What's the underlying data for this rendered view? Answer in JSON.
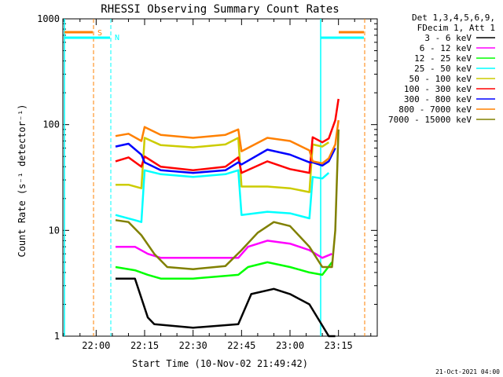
{
  "chart_data": {
    "type": "line",
    "title": "RHESSI Observing Summary Count Rates",
    "xlabel": "Start Time (10-Nov-02 21:49:42)",
    "ylabel": "Count Rate (s⁻¹ detector⁻¹)",
    "y_scale": "log",
    "ylim": [
      1,
      1000
    ],
    "xlim": [
      "21:49:42",
      "23:27:00"
    ],
    "x_ticks": [
      "22:00",
      "22:15",
      "22:30",
      "22:45",
      "23:00",
      "23:15"
    ],
    "y_ticks": [
      "1",
      "10",
      "100",
      "1000"
    ],
    "legend_header": [
      "Det 1,3,4,5,6,9,",
      "FDecim 1, Att 1"
    ],
    "legend_position": "right",
    "series": [
      {
        "name": "3 - 6 keV",
        "color": "#000000",
        "x": [
          "22:06",
          "22:12",
          "22:16",
          "22:18",
          "22:30",
          "22:44",
          "22:48",
          "22:55",
          "23:00",
          "23:06",
          "23:12",
          "23:14"
        ],
        "y": [
          3.5,
          3.5,
          1.5,
          1.3,
          1.2,
          1.3,
          2.5,
          2.8,
          2.5,
          2.0,
          1.0,
          1.0
        ]
      },
      {
        "name": "6 - 12 keV",
        "color": "#ff00ff",
        "x": [
          "22:06",
          "22:12",
          "22:16",
          "22:20",
          "22:30",
          "22:44",
          "22:47",
          "22:53",
          "23:00",
          "23:06",
          "23:10",
          "23:13"
        ],
        "y": [
          7,
          7,
          6,
          5.5,
          5.5,
          5.5,
          7,
          8,
          7.5,
          6.5,
          5.5,
          6
        ]
      },
      {
        "name": "12 - 25 keV",
        "color": "#00ff00",
        "x": [
          "22:06",
          "22:12",
          "22:16",
          "22:20",
          "22:30",
          "22:44",
          "22:47",
          "22:53",
          "23:00",
          "23:06",
          "23:10",
          "23:13"
        ],
        "y": [
          4.5,
          4.2,
          3.8,
          3.5,
          3.5,
          3.8,
          4.5,
          5,
          4.5,
          4,
          3.8,
          5
        ]
      },
      {
        "name": "25 - 50 keV",
        "color": "#00ffff",
        "x": [
          "22:06",
          "22:12",
          "22:14",
          "22:15",
          "22:20",
          "22:30",
          "22:40",
          "22:44",
          "22:45",
          "22:53",
          "23:00",
          "23:06",
          "23:07",
          "23:10",
          "23:12"
        ],
        "y": [
          14,
          12.5,
          12,
          37,
          34,
          32,
          34,
          37,
          14,
          15,
          14.5,
          13,
          32,
          31,
          35
        ]
      },
      {
        "name": "50 - 100 keV",
        "color": "#cccc00",
        "x": [
          "22:06",
          "22:10",
          "22:14",
          "22:15",
          "22:20",
          "22:30",
          "22:40",
          "22:44",
          "22:45",
          "22:53",
          "23:00",
          "23:06",
          "23:07",
          "23:10",
          "23:12"
        ],
        "y": [
          27,
          27,
          25,
          75,
          64,
          61,
          65,
          75,
          26,
          26,
          25,
          23,
          65,
          62,
          68
        ]
      },
      {
        "name": "100 - 300 keV",
        "color": "#ff0000",
        "x": [
          "22:06",
          "22:10",
          "22:14",
          "22:15",
          "22:20",
          "22:30",
          "22:40",
          "22:44",
          "22:45",
          "22:53",
          "23:00",
          "23:06",
          "23:07",
          "23:10",
          "23:12",
          "23:14",
          "23:15"
        ],
        "y": [
          45,
          49,
          40,
          50,
          40,
          37,
          40,
          49,
          35,
          45,
          38,
          35,
          76,
          68,
          74,
          110,
          175
        ]
      },
      {
        "name": "300 - 800 keV",
        "color": "#0000ff",
        "x": [
          "22:06",
          "22:10",
          "22:14",
          "22:15",
          "22:20",
          "22:30",
          "22:40",
          "22:44",
          "22:45",
          "22:53",
          "23:00",
          "23:06",
          "23:07",
          "23:10",
          "23:12",
          "23:14"
        ],
        "y": [
          62,
          66,
          52,
          44,
          37,
          35,
          37,
          44,
          42,
          58,
          52,
          44,
          44,
          41,
          45,
          60
        ]
      },
      {
        "name": "800 - 7000 keV",
        "color": "#ff8000",
        "x": [
          "22:06",
          "22:10",
          "22:14",
          "22:15",
          "22:20",
          "22:30",
          "22:40",
          "22:44",
          "22:45",
          "22:53",
          "23:00",
          "23:06",
          "23:07",
          "23:10",
          "23:12",
          "23:14",
          "23:15"
        ],
        "y": [
          78,
          82,
          70,
          95,
          80,
          75,
          80,
          90,
          56,
          75,
          70,
          57,
          45,
          43,
          48,
          65,
          110
        ]
      },
      {
        "name": "7000 - 15000 keV",
        "color": "#808000",
        "x": [
          "22:06",
          "22:10",
          "22:14",
          "22:18",
          "22:22",
          "22:30",
          "22:40",
          "22:45",
          "22:50",
          "22:55",
          "23:00",
          "23:06",
          "23:10",
          "23:13",
          "23:14",
          "23:15"
        ],
        "y": [
          12.5,
          12,
          9,
          6,
          4.5,
          4.3,
          4.6,
          6.5,
          9.5,
          12,
          11,
          7,
          4.5,
          4.5,
          10,
          90
        ]
      }
    ],
    "flags": [
      {
        "label": "S",
        "color": "#ff8000"
      },
      {
        "label": "N",
        "color": "#00ffff"
      }
    ],
    "timestamp": "21-Oct-2021 04:00"
  }
}
